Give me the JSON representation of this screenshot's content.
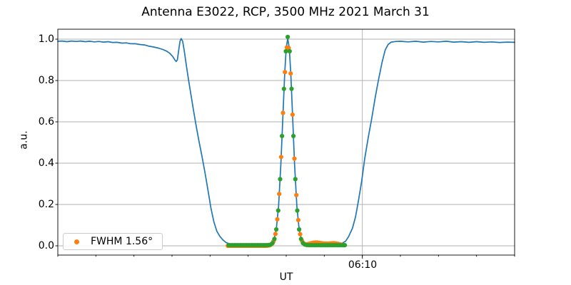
{
  "title": "Antenna E3022, RCP, 3500 MHz 2021 March 31",
  "chart_data": {
    "type": "line",
    "title": "Antenna E3022, RCP, 3500 MHz 2021 March 31",
    "xlabel": "UT",
    "ylabel": "a.u.",
    "grid": true,
    "x_axis": {
      "unit": "minutes after 05:30 UT",
      "xlim": [
        0,
        60
      ],
      "minor_tick_step_min": 5,
      "major_ticks": [
        {
          "t": 40,
          "label": "06:10"
        }
      ]
    },
    "y_axis": {
      "ylim": [
        -0.045,
        1.048
      ],
      "ticks": [
        {
          "v": 0.0,
          "label": "0.0"
        },
        {
          "v": 0.2,
          "label": "0.2"
        },
        {
          "v": 0.4,
          "label": "0.4"
        },
        {
          "v": 0.6,
          "label": "0.6"
        },
        {
          "v": 0.8,
          "label": "0.8"
        },
        {
          "v": 1.0,
          "label": "1.0"
        }
      ]
    },
    "colors": {
      "beam": "#1f77b4",
      "fit": "#ff7f0e",
      "data": "#2ca02c",
      "grid": "#b0b0b0",
      "spine": "#000000"
    },
    "legend": {
      "label": "FWHM 1.56°",
      "marker_color_key": "fit",
      "position": "lower left"
    },
    "series": [
      {
        "name": "drift-scan-record",
        "type": "line",
        "color_key": "beam",
        "line_width": 1.7,
        "points": [
          [
            0,
            0.99
          ],
          [
            0.6,
            0.991
          ],
          [
            1.2,
            0.988
          ],
          [
            1.8,
            0.991
          ],
          [
            2.4,
            0.989
          ],
          [
            3.0,
            0.991
          ],
          [
            3.6,
            0.988
          ],
          [
            4.2,
            0.99
          ],
          [
            4.8,
            0.987
          ],
          [
            5.4,
            0.989
          ],
          [
            6.0,
            0.986
          ],
          [
            6.6,
            0.988
          ],
          [
            7.2,
            0.984
          ],
          [
            7.8,
            0.985
          ],
          [
            8.4,
            0.981
          ],
          [
            9.0,
            0.982
          ],
          [
            9.6,
            0.978
          ],
          [
            10.2,
            0.978
          ],
          [
            10.8,
            0.974
          ],
          [
            11.4,
            0.972
          ],
          [
            12.0,
            0.966
          ],
          [
            12.6,
            0.962
          ],
          [
            13.2,
            0.957
          ],
          [
            13.8,
            0.95
          ],
          [
            14.3,
            0.942
          ],
          [
            14.7,
            0.932
          ],
          [
            15.1,
            0.916
          ],
          [
            15.4,
            0.898
          ],
          [
            15.55,
            0.892
          ],
          [
            15.7,
            0.9
          ],
          [
            15.9,
            0.952
          ],
          [
            16.05,
            0.99
          ],
          [
            16.2,
            1.003
          ],
          [
            16.4,
            0.99
          ],
          [
            16.6,
            0.945
          ],
          [
            16.9,
            0.868
          ],
          [
            17.2,
            0.795
          ],
          [
            17.5,
            0.728
          ],
          [
            17.8,
            0.66
          ],
          [
            18.1,
            0.595
          ],
          [
            18.5,
            0.515
          ],
          [
            18.9,
            0.44
          ],
          [
            19.3,
            0.36
          ],
          [
            19.7,
            0.275
          ],
          [
            20.1,
            0.185
          ],
          [
            20.5,
            0.115
          ],
          [
            20.9,
            0.07
          ],
          [
            21.3,
            0.045
          ],
          [
            21.7,
            0.028
          ],
          [
            22.1,
            0.016
          ],
          [
            22.6,
            0.009
          ],
          [
            23.2,
            0.006
          ],
          [
            24.0,
            0.004
          ],
          [
            25.0,
            0.004
          ],
          [
            26.0,
            0.004
          ],
          [
            27.0,
            0.004
          ],
          [
            28.0,
            0.007
          ],
          [
            28.4,
            0.03
          ],
          [
            28.7,
            0.08
          ],
          [
            29.0,
            0.192
          ],
          [
            29.3,
            0.395
          ],
          [
            29.55,
            0.615
          ],
          [
            29.8,
            0.834
          ],
          [
            30.0,
            0.958
          ],
          [
            30.2,
            1.003
          ],
          [
            30.4,
            0.958
          ],
          [
            30.6,
            0.834
          ],
          [
            30.85,
            0.615
          ],
          [
            31.1,
            0.395
          ],
          [
            31.4,
            0.192
          ],
          [
            31.7,
            0.08
          ],
          [
            32.0,
            0.03
          ],
          [
            32.3,
            0.012
          ],
          [
            32.7,
            0.005
          ],
          [
            33.5,
            0.003
          ],
          [
            34.5,
            0.003
          ],
          [
            35.5,
            0.003
          ],
          [
            36.5,
            0.005
          ],
          [
            37.2,
            0.01
          ],
          [
            37.8,
            0.022
          ],
          [
            38.2,
            0.045
          ],
          [
            38.7,
            0.085
          ],
          [
            39.1,
            0.14
          ],
          [
            39.5,
            0.22
          ],
          [
            39.9,
            0.31
          ],
          [
            40.3,
            0.42
          ],
          [
            40.8,
            0.53
          ],
          [
            41.2,
            0.61
          ],
          [
            41.7,
            0.72
          ],
          [
            42.1,
            0.8
          ],
          [
            42.6,
            0.89
          ],
          [
            43.0,
            0.948
          ],
          [
            43.4,
            0.975
          ],
          [
            43.8,
            0.986
          ],
          [
            44.4,
            0.989
          ],
          [
            45.0,
            0.99
          ],
          [
            46.0,
            0.987
          ],
          [
            47.0,
            0.99
          ],
          [
            48.0,
            0.986
          ],
          [
            49.0,
            0.989
          ],
          [
            50.0,
            0.987
          ],
          [
            51.0,
            0.99
          ],
          [
            52.0,
            0.986
          ],
          [
            53.0,
            0.988
          ],
          [
            54.0,
            0.985
          ],
          [
            55.0,
            0.988
          ],
          [
            56.0,
            0.985
          ],
          [
            57.0,
            0.987
          ],
          [
            58.0,
            0.984
          ],
          [
            59.0,
            0.986
          ],
          [
            60.0,
            0.985
          ]
        ]
      },
      {
        "name": "gaussian-fit-samples",
        "type": "scatter",
        "color_key": "fit",
        "marker_radius": 3.1,
        "fwhm_deg": 1.56,
        "sampling": {
          "t_start": 22.33,
          "dt": 0.25,
          "n": 62
        },
        "model": {
          "amp": 0.975,
          "center": 30.2,
          "sigma": 0.68,
          "baseline": 0.0,
          "residual_bumps": [
            {
              "amp": 0.016,
              "center": 33.9,
              "sigma": 0.9
            },
            {
              "amp": 0.012,
              "center": 36.3,
              "sigma": 0.8
            }
          ]
        }
      },
      {
        "name": "calibrated-data-samples",
        "type": "scatter",
        "color_key": "data",
        "marker_radius": 3.1,
        "sampling": {
          "t_start": 22.45,
          "dt": 0.25,
          "n": 62
        },
        "model": {
          "amp": 1.008,
          "center": 30.2,
          "sigma": 0.66,
          "baseline": 0.003,
          "residual_bumps": []
        }
      }
    ]
  }
}
